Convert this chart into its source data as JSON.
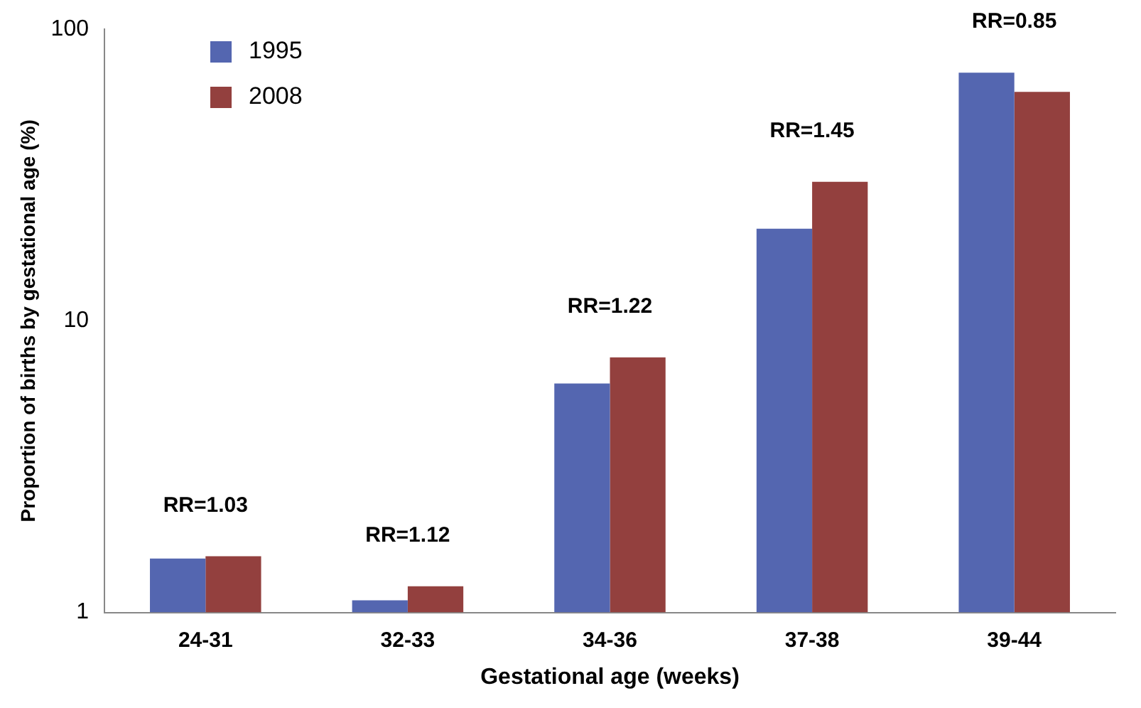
{
  "chart_data": {
    "type": "bar",
    "xlabel": "Gestational age (weeks)",
    "ylabel": "Proportion of births by gestational age (%)",
    "categories": [
      "24-31",
      "32-33",
      "34-36",
      "37-38",
      "39-44"
    ],
    "series": [
      {
        "name": "1995",
        "color": "#5466b0",
        "values": [
          1.53,
          1.1,
          6.1,
          20.7,
          71
        ]
      },
      {
        "name": "2008",
        "color": "#93403e",
        "values": [
          1.56,
          1.23,
          7.5,
          30,
          61
        ]
      }
    ],
    "log": "y",
    "ylim": [
      1,
      100
    ],
    "yticks": [
      1,
      10,
      100
    ],
    "grid": false,
    "legend": "top left",
    "annotations": [
      "RR=1.03",
      "RR=1.12",
      "RR=1.22",
      "RR=1.45",
      "RR=0.85"
    ]
  }
}
